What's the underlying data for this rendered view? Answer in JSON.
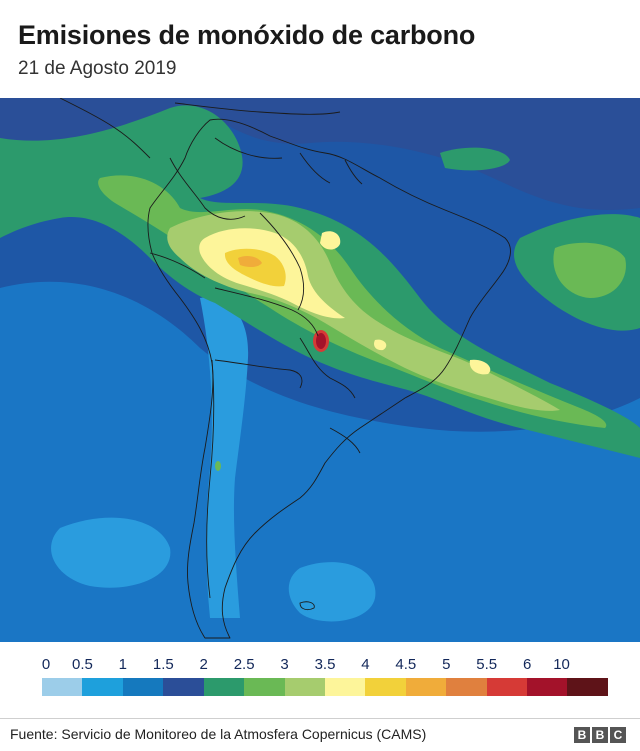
{
  "header": {
    "title": "Emisiones de monóxido de carbono",
    "subtitle": "21 de Agosto 2019"
  },
  "legend": {
    "labels": [
      "0",
      "0.5",
      "1",
      "1.5",
      "2",
      "2.5",
      "3",
      "3.5",
      "4",
      "4.5",
      "5",
      "5.5",
      "6",
      "10"
    ],
    "colors": [
      "#9ccde9",
      "#1ea0dc",
      "#1579be",
      "#2b4e98",
      "#2c9a6c",
      "#6ab955",
      "#a6cc6e",
      "#fdf59a",
      "#f2d13a",
      "#f0ac3a",
      "#e0803e",
      "#d63a36",
      "#a3122a",
      "#5e1318"
    ]
  },
  "footer": {
    "source": "Fuente: Servicio de Monitoreo de la Atmosfera Copernicus (CAMS)",
    "logo": [
      "B",
      "B",
      "C"
    ]
  },
  "map": {
    "description_colors": {
      "ocean_deep": "#1d58a8",
      "ocean_mid": "#1a74c4",
      "ocean_light": "#2b9bdd",
      "land_line": "#222222"
    }
  }
}
